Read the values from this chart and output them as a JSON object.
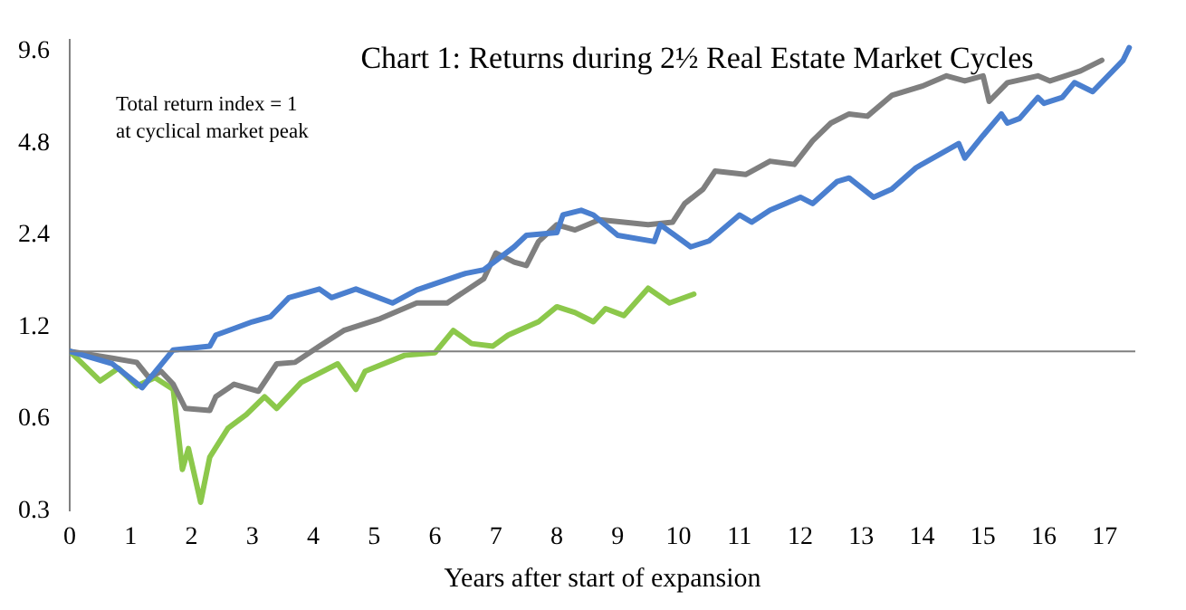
{
  "chart_data": {
    "type": "line",
    "title": "Chart 1: Returns during 2½ Real Estate Market Cycles",
    "xlabel": "Years after start of expansion",
    "annotations": [
      "Total return index = 1\nat cyclical market peak"
    ],
    "log": "y",
    "grid": false,
    "legend": false,
    "marker": "none",
    "line_style": "solid",
    "xlim": [
      0,
      17.5
    ],
    "xticks": [
      0,
      1,
      2,
      3,
      4,
      5,
      6,
      7,
      8,
      9,
      10,
      11,
      12,
      13,
      14,
      15,
      16,
      17
    ],
    "ylim": [
      0.3,
      10.5
    ],
    "yticks": [
      0.3,
      0.6,
      1.2,
      2.4,
      4.8,
      9.6
    ],
    "ref_lines": [
      {
        "axis": "y",
        "value": 1,
        "color": "#808080"
      }
    ],
    "series": [
      {
        "color": "#4a7fcf",
        "x": [
          0,
          0.7,
          1.19,
          1.7,
          2.3,
          2.4,
          3.0,
          3.3,
          3.6,
          4.1,
          4.3,
          4.7,
          5.3,
          5.7,
          6.2,
          6.5,
          6.8,
          7.3,
          7.5,
          8.0,
          8.1,
          8.4,
          8.6,
          9.0,
          9.6,
          9.7,
          10.2,
          10.5,
          11.0,
          11.2,
          11.5,
          12.0,
          12.2,
          12.6,
          12.8,
          13.2,
          13.5,
          13.9,
          14.6,
          14.7,
          15.0,
          15.3,
          15.4,
          15.6,
          15.9,
          16.0,
          16.3,
          16.5,
          16.8,
          17.3,
          17.4
        ],
        "values": [
          1.0,
          0.91,
          0.76,
          1.01,
          1.04,
          1.13,
          1.25,
          1.3,
          1.5,
          1.6,
          1.5,
          1.6,
          1.44,
          1.59,
          1.72,
          1.8,
          1.85,
          2.2,
          2.4,
          2.45,
          2.8,
          2.9,
          2.8,
          2.4,
          2.29,
          2.6,
          2.2,
          2.3,
          2.8,
          2.65,
          2.9,
          3.2,
          3.05,
          3.6,
          3.7,
          3.2,
          3.4,
          4.0,
          4.8,
          4.3,
          5.1,
          6.0,
          5.6,
          5.8,
          6.8,
          6.5,
          6.8,
          7.6,
          7.1,
          9.0,
          9.9
        ]
      },
      {
        "color": "#7f7f7f",
        "x": [
          0,
          0.7,
          1.1,
          1.3,
          1.5,
          1.7,
          1.9,
          2.3,
          2.4,
          2.7,
          3.1,
          3.4,
          3.7,
          4.1,
          4.5,
          5.1,
          5.7,
          6.2,
          6.8,
          7.0,
          7.3,
          7.5,
          7.7,
          8.0,
          8.3,
          8.7,
          9.1,
          9.5,
          9.9,
          10.1,
          10.4,
          10.6,
          11.1,
          11.5,
          11.9,
          12.2,
          12.5,
          12.8,
          13.1,
          13.5,
          14.0,
          14.4,
          14.7,
          15.0,
          15.1,
          15.4,
          15.9,
          16.1,
          16.6,
          16.95
        ],
        "values": [
          1.0,
          0.95,
          0.92,
          0.82,
          0.86,
          0.78,
          0.65,
          0.64,
          0.71,
          0.78,
          0.74,
          0.91,
          0.92,
          1.04,
          1.17,
          1.28,
          1.44,
          1.44,
          1.73,
          2.1,
          1.96,
          1.91,
          2.29,
          2.6,
          2.5,
          2.7,
          2.65,
          2.6,
          2.65,
          3.05,
          3.4,
          3.9,
          3.8,
          4.2,
          4.1,
          4.9,
          5.6,
          6.0,
          5.9,
          6.9,
          7.4,
          8.0,
          7.7,
          8.0,
          6.6,
          7.6,
          8.0,
          7.7,
          8.3,
          9.0
        ]
      },
      {
        "color": "#8cc84b",
        "x": [
          0,
          0.5,
          0.8,
          1.1,
          1.4,
          1.7,
          1.85,
          1.95,
          2.15,
          2.3,
          2.6,
          2.9,
          3.2,
          3.4,
          3.8,
          4.4,
          4.7,
          4.85,
          5.5,
          6.0,
          6.3,
          6.6,
          6.95,
          7.2,
          7.7,
          8.0,
          8.3,
          8.6,
          8.8,
          9.1,
          9.5,
          9.85,
          10.25
        ],
        "values": [
          1.0,
          0.8,
          0.88,
          0.77,
          0.82,
          0.75,
          0.41,
          0.48,
          0.32,
          0.45,
          0.56,
          0.62,
          0.71,
          0.65,
          0.79,
          0.91,
          0.75,
          0.86,
          0.97,
          0.99,
          1.17,
          1.06,
          1.04,
          1.13,
          1.25,
          1.4,
          1.34,
          1.25,
          1.38,
          1.31,
          1.61,
          1.44,
          1.54
        ]
      }
    ]
  }
}
